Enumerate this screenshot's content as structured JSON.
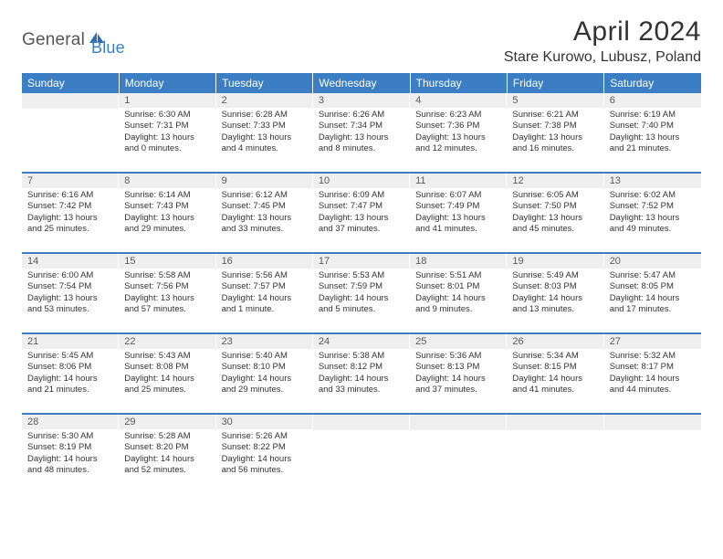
{
  "brand": {
    "text1": "General",
    "text2": "Blue"
  },
  "title": "April 2024",
  "location": "Stare Kurowo, Lubusz, Poland",
  "header_bg": "#3b7ec4",
  "daynum_bg": "#efefef",
  "days": [
    "Sunday",
    "Monday",
    "Tuesday",
    "Wednesday",
    "Thursday",
    "Friday",
    "Saturday"
  ],
  "weeks": [
    [
      {
        "n": "",
        "sr": "",
        "ss": "",
        "dl": ""
      },
      {
        "n": "1",
        "sr": "Sunrise: 6:30 AM",
        "ss": "Sunset: 7:31 PM",
        "dl": "Daylight: 13 hours and 0 minutes."
      },
      {
        "n": "2",
        "sr": "Sunrise: 6:28 AM",
        "ss": "Sunset: 7:33 PM",
        "dl": "Daylight: 13 hours and 4 minutes."
      },
      {
        "n": "3",
        "sr": "Sunrise: 6:26 AM",
        "ss": "Sunset: 7:34 PM",
        "dl": "Daylight: 13 hours and 8 minutes."
      },
      {
        "n": "4",
        "sr": "Sunrise: 6:23 AM",
        "ss": "Sunset: 7:36 PM",
        "dl": "Daylight: 13 hours and 12 minutes."
      },
      {
        "n": "5",
        "sr": "Sunrise: 6:21 AM",
        "ss": "Sunset: 7:38 PM",
        "dl": "Daylight: 13 hours and 16 minutes."
      },
      {
        "n": "6",
        "sr": "Sunrise: 6:19 AM",
        "ss": "Sunset: 7:40 PM",
        "dl": "Daylight: 13 hours and 21 minutes."
      }
    ],
    [
      {
        "n": "7",
        "sr": "Sunrise: 6:16 AM",
        "ss": "Sunset: 7:42 PM",
        "dl": "Daylight: 13 hours and 25 minutes."
      },
      {
        "n": "8",
        "sr": "Sunrise: 6:14 AM",
        "ss": "Sunset: 7:43 PM",
        "dl": "Daylight: 13 hours and 29 minutes."
      },
      {
        "n": "9",
        "sr": "Sunrise: 6:12 AM",
        "ss": "Sunset: 7:45 PM",
        "dl": "Daylight: 13 hours and 33 minutes."
      },
      {
        "n": "10",
        "sr": "Sunrise: 6:09 AM",
        "ss": "Sunset: 7:47 PM",
        "dl": "Daylight: 13 hours and 37 minutes."
      },
      {
        "n": "11",
        "sr": "Sunrise: 6:07 AM",
        "ss": "Sunset: 7:49 PM",
        "dl": "Daylight: 13 hours and 41 minutes."
      },
      {
        "n": "12",
        "sr": "Sunrise: 6:05 AM",
        "ss": "Sunset: 7:50 PM",
        "dl": "Daylight: 13 hours and 45 minutes."
      },
      {
        "n": "13",
        "sr": "Sunrise: 6:02 AM",
        "ss": "Sunset: 7:52 PM",
        "dl": "Daylight: 13 hours and 49 minutes."
      }
    ],
    [
      {
        "n": "14",
        "sr": "Sunrise: 6:00 AM",
        "ss": "Sunset: 7:54 PM",
        "dl": "Daylight: 13 hours and 53 minutes."
      },
      {
        "n": "15",
        "sr": "Sunrise: 5:58 AM",
        "ss": "Sunset: 7:56 PM",
        "dl": "Daylight: 13 hours and 57 minutes."
      },
      {
        "n": "16",
        "sr": "Sunrise: 5:56 AM",
        "ss": "Sunset: 7:57 PM",
        "dl": "Daylight: 14 hours and 1 minute."
      },
      {
        "n": "17",
        "sr": "Sunrise: 5:53 AM",
        "ss": "Sunset: 7:59 PM",
        "dl": "Daylight: 14 hours and 5 minutes."
      },
      {
        "n": "18",
        "sr": "Sunrise: 5:51 AM",
        "ss": "Sunset: 8:01 PM",
        "dl": "Daylight: 14 hours and 9 minutes."
      },
      {
        "n": "19",
        "sr": "Sunrise: 5:49 AM",
        "ss": "Sunset: 8:03 PM",
        "dl": "Daylight: 14 hours and 13 minutes."
      },
      {
        "n": "20",
        "sr": "Sunrise: 5:47 AM",
        "ss": "Sunset: 8:05 PM",
        "dl": "Daylight: 14 hours and 17 minutes."
      }
    ],
    [
      {
        "n": "21",
        "sr": "Sunrise: 5:45 AM",
        "ss": "Sunset: 8:06 PM",
        "dl": "Daylight: 14 hours and 21 minutes."
      },
      {
        "n": "22",
        "sr": "Sunrise: 5:43 AM",
        "ss": "Sunset: 8:08 PM",
        "dl": "Daylight: 14 hours and 25 minutes."
      },
      {
        "n": "23",
        "sr": "Sunrise: 5:40 AM",
        "ss": "Sunset: 8:10 PM",
        "dl": "Daylight: 14 hours and 29 minutes."
      },
      {
        "n": "24",
        "sr": "Sunrise: 5:38 AM",
        "ss": "Sunset: 8:12 PM",
        "dl": "Daylight: 14 hours and 33 minutes."
      },
      {
        "n": "25",
        "sr": "Sunrise: 5:36 AM",
        "ss": "Sunset: 8:13 PM",
        "dl": "Daylight: 14 hours and 37 minutes."
      },
      {
        "n": "26",
        "sr": "Sunrise: 5:34 AM",
        "ss": "Sunset: 8:15 PM",
        "dl": "Daylight: 14 hours and 41 minutes."
      },
      {
        "n": "27",
        "sr": "Sunrise: 5:32 AM",
        "ss": "Sunset: 8:17 PM",
        "dl": "Daylight: 14 hours and 44 minutes."
      }
    ],
    [
      {
        "n": "28",
        "sr": "Sunrise: 5:30 AM",
        "ss": "Sunset: 8:19 PM",
        "dl": "Daylight: 14 hours and 48 minutes."
      },
      {
        "n": "29",
        "sr": "Sunrise: 5:28 AM",
        "ss": "Sunset: 8:20 PM",
        "dl": "Daylight: 14 hours and 52 minutes."
      },
      {
        "n": "30",
        "sr": "Sunrise: 5:26 AM",
        "ss": "Sunset: 8:22 PM",
        "dl": "Daylight: 14 hours and 56 minutes."
      },
      {
        "n": "",
        "sr": "",
        "ss": "",
        "dl": ""
      },
      {
        "n": "",
        "sr": "",
        "ss": "",
        "dl": ""
      },
      {
        "n": "",
        "sr": "",
        "ss": "",
        "dl": ""
      },
      {
        "n": "",
        "sr": "",
        "ss": "",
        "dl": ""
      }
    ]
  ]
}
